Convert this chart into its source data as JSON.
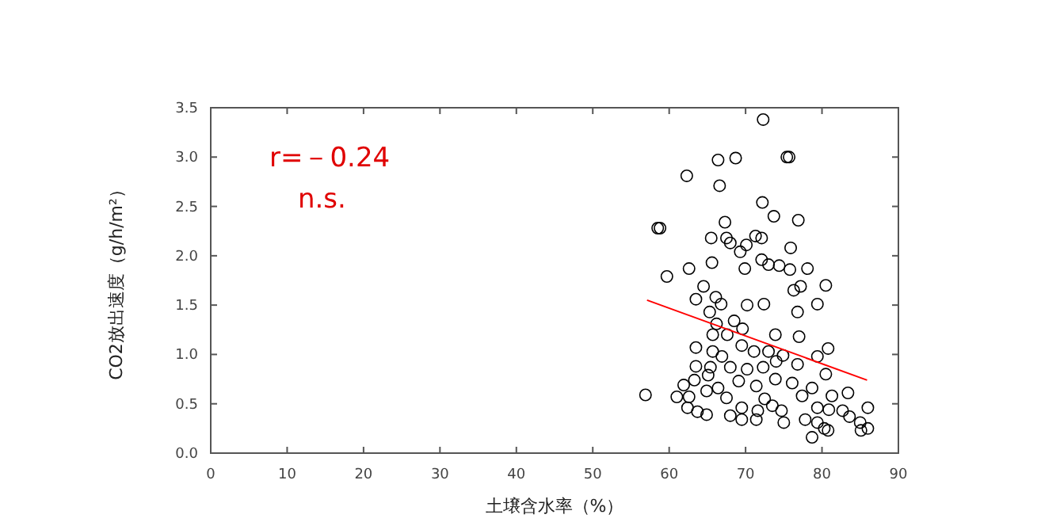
{
  "chart_data": {
    "type": "scatter",
    "xlabel": "土壌含水率（%）",
    "ylabel": "CO2放出速度（g/h/m²）",
    "annotations": [
      "r=－0.24",
      "n.s."
    ],
    "xlim": [
      0,
      90
    ],
    "xticks": [
      0,
      10,
      20,
      30,
      40,
      50,
      60,
      70,
      80,
      90
    ],
    "ylim": [
      0,
      3.5
    ],
    "yticks": [
      {
        "value": 0,
        "label": "0.0"
      },
      {
        "value": 0.5,
        "label": "0.5"
      },
      {
        "value": 1,
        "label": "1.0"
      },
      {
        "value": 1.5,
        "label": "1.5"
      },
      {
        "value": 2,
        "label": "2.0"
      },
      {
        "value": 2.5,
        "label": "2.5"
      },
      {
        "value": 3,
        "label": "3.0"
      },
      {
        "value": 3.5,
        "label": "3.5"
      }
    ],
    "grid": false,
    "series": [
      {
        "marker": "circle",
        "color": "#000000",
        "x": [
          72.3,
          66.4,
          68.7,
          75.4,
          75.7,
          62.3,
          66.6,
          72.2,
          73.7,
          76.9,
          58.5,
          58.8,
          67.3,
          65.5,
          67.5,
          68.0,
          69.3,
          70.1,
          71.3,
          72.1,
          75.9,
          59.7,
          62.6,
          65.6,
          69.9,
          72.1,
          73.0,
          74.4,
          75.8,
          78.1,
          80.5,
          64.5,
          66.1,
          63.5,
          66.8,
          70.2,
          72.4,
          76.3,
          77.2,
          79.4,
          76.8,
          65.3,
          66.2,
          68.5,
          69.6,
          65.7,
          67.6,
          73.9,
          77.0,
          63.5,
          65.7,
          66.9,
          69.5,
          71.1,
          73.0,
          74.9,
          79.4,
          80.8,
          63.5,
          65.4,
          68.0,
          70.2,
          72.3,
          74.0,
          76.8,
          80.5,
          63.3,
          61.9,
          65.1,
          66.4,
          67.5,
          69.1,
          71.4,
          72.5,
          73.9,
          76.1,
          78.7,
          77.4,
          56.9,
          61.0,
          62.6,
          64.9,
          62.4,
          63.7,
          64.9,
          68.0,
          69.5,
          71.6,
          73.5,
          74.7,
          75.0,
          69.5,
          71.4,
          77.8,
          78.7,
          79.4,
          80.9,
          81.3,
          83.4,
          82.7,
          83.6,
          80.3,
          80.8,
          85.0,
          85.1,
          86.0,
          86.0,
          79.4
        ],
        "values": [
          3.38,
          2.97,
          2.99,
          3.0,
          3.0,
          2.81,
          2.71,
          2.54,
          2.4,
          2.36,
          2.28,
          2.28,
          2.34,
          2.18,
          2.18,
          2.13,
          2.04,
          2.11,
          2.2,
          2.18,
          2.08,
          1.79,
          1.87,
          1.93,
          1.87,
          1.96,
          1.91,
          1.9,
          1.86,
          1.87,
          1.7,
          1.69,
          1.58,
          1.56,
          1.51,
          1.5,
          1.51,
          1.65,
          1.69,
          1.51,
          1.43,
          1.43,
          1.31,
          1.34,
          1.26,
          1.2,
          1.2,
          1.2,
          1.18,
          1.07,
          1.03,
          0.98,
          1.09,
          1.03,
          1.03,
          0.99,
          0.98,
          1.06,
          0.88,
          0.87,
          0.87,
          0.85,
          0.87,
          0.93,
          0.9,
          0.8,
          0.74,
          0.69,
          0.79,
          0.66,
          0.56,
          0.73,
          0.68,
          0.55,
          0.75,
          0.71,
          0.66,
          0.58,
          0.59,
          0.57,
          0.57,
          0.63,
          0.46,
          0.42,
          0.39,
          0.38,
          0.46,
          0.43,
          0.48,
          0.43,
          0.31,
          0.34,
          0.34,
          0.34,
          0.16,
          0.46,
          0.44,
          0.58,
          0.61,
          0.43,
          0.37,
          0.25,
          0.23,
          0.31,
          0.23,
          0.25,
          0.46,
          0.31
        ]
      },
      {
        "type": "line",
        "color": "#ff0000",
        "x": [
          57.1,
          85.9
        ],
        "values": [
          1.55,
          0.74
        ]
      }
    ]
  }
}
